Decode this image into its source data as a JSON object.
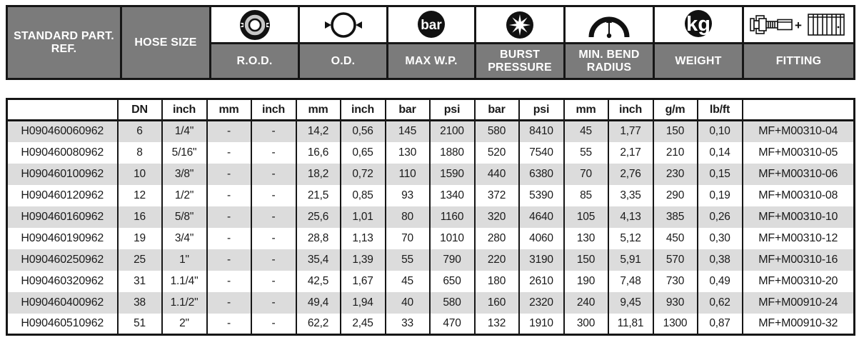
{
  "banner": {
    "columns": [
      {
        "label": "STANDARD PART. REF.",
        "icon": null
      },
      {
        "label": "HOSE SIZE",
        "icon": null
      },
      {
        "label": "R.O.D.",
        "icon": "rod-cross-section-icon"
      },
      {
        "label": "O.D.",
        "icon": "outer-diameter-icon"
      },
      {
        "label": "MAX W.P.",
        "icon": "bar-pressure-icon"
      },
      {
        "label": "BURST PRESSURE",
        "icon": "burst-star-icon"
      },
      {
        "label": "MIN. BEND RADIUS",
        "icon": "bend-radius-gauge-icon"
      },
      {
        "label": "WEIGHT",
        "icon": "kg-icon"
      },
      {
        "label": "FITTING",
        "icon": "fitting-plus-ferrule-icon"
      }
    ],
    "bar_icon_text": "bar",
    "kg_icon_text": "kg",
    "fitting_plus_text": "+"
  },
  "table": {
    "unit_headers": [
      "",
      "DN",
      "inch",
      "mm",
      "inch",
      "mm",
      "inch",
      "bar",
      "psi",
      "bar",
      "psi",
      "mm",
      "inch",
      "g/m",
      "lb/ft",
      ""
    ],
    "rows": [
      [
        "H090460060962",
        "6",
        "1/4\"",
        "-",
        "-",
        "14,2",
        "0,56",
        "145",
        "2100",
        "580",
        "8410",
        "45",
        "1,77",
        "150",
        "0,10",
        "MF+M00310-04"
      ],
      [
        "H090460080962",
        "8",
        "5/16\"",
        "-",
        "-",
        "16,6",
        "0,65",
        "130",
        "1880",
        "520",
        "7540",
        "55",
        "2,17",
        "210",
        "0,14",
        "MF+M00310-05"
      ],
      [
        "H090460100962",
        "10",
        "3/8\"",
        "-",
        "-",
        "18,2",
        "0,72",
        "110",
        "1590",
        "440",
        "6380",
        "70",
        "2,76",
        "230",
        "0,15",
        "MF+M00310-06"
      ],
      [
        "H090460120962",
        "12",
        "1/2\"",
        "-",
        "-",
        "21,5",
        "0,85",
        "93",
        "1340",
        "372",
        "5390",
        "85",
        "3,35",
        "290",
        "0,19",
        "MF+M00310-08"
      ],
      [
        "H090460160962",
        "16",
        "5/8\"",
        "-",
        "-",
        "25,6",
        "1,01",
        "80",
        "1160",
        "320",
        "4640",
        "105",
        "4,13",
        "385",
        "0,26",
        "MF+M00310-10"
      ],
      [
        "H090460190962",
        "19",
        "3/4\"",
        "-",
        "-",
        "28,8",
        "1,13",
        "70",
        "1010",
        "280",
        "4060",
        "130",
        "5,12",
        "450",
        "0,30",
        "MF+M00310-12"
      ],
      [
        "H090460250962",
        "25",
        "1\"",
        "-",
        "-",
        "35,4",
        "1,39",
        "55",
        "790",
        "220",
        "3190",
        "150",
        "5,91",
        "570",
        "0,38",
        "MF+M00310-16"
      ],
      [
        "H090460320962",
        "31",
        "1.1/4\"",
        "-",
        "-",
        "42,5",
        "1,67",
        "45",
        "650",
        "180",
        "2610",
        "190",
        "7,48",
        "730",
        "0,49",
        "MF+M00310-20"
      ],
      [
        "H090460400962",
        "38",
        "1.1/2\"",
        "-",
        "-",
        "49,4",
        "1,94",
        "40",
        "580",
        "160",
        "2320",
        "240",
        "9,45",
        "930",
        "0,62",
        "MF+M00910-24"
      ],
      [
        "H090460510962",
        "51",
        "2\"",
        "-",
        "-",
        "62,2",
        "2,45",
        "33",
        "470",
        "132",
        "1910",
        "300",
        "11,81",
        "1300",
        "0,87",
        "MF+M00910-32"
      ]
    ]
  },
  "colors": {
    "banner_bg": "#7b7b7b",
    "banner_text": "#ffffff",
    "row_shade": "#dcdcdc",
    "border": "#161616",
    "ink": "#1a1a1a"
  }
}
